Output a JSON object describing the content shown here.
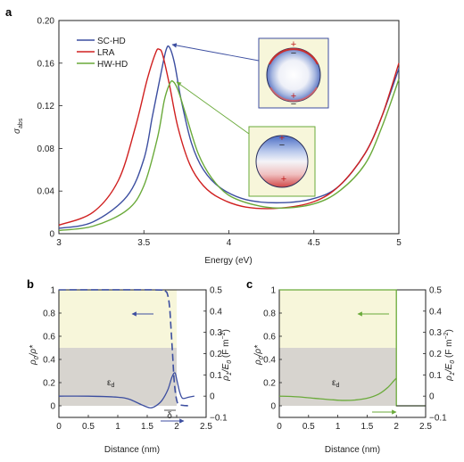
{
  "panel_labels": {
    "a": "a",
    "b": "b",
    "c": "c"
  },
  "colors": {
    "sc_hd": "#3c4ea0",
    "lra": "#d02020",
    "hw_hd": "#6aaa3a",
    "yellow_bg": "#f7f6da",
    "gray_bg": "#d7d4cf"
  },
  "chart_data": [
    {
      "type": "line",
      "panel": "a",
      "xlabel": "Energy (eV)",
      "ylabel": "σ_abs",
      "ylabel_main": "σ",
      "ylabel_sub": "abs",
      "xlim": [
        3,
        5
      ],
      "ylim": [
        0,
        0.2
      ],
      "x_ticks": [
        "3",
        "3.5",
        "4",
        "4.5",
        "5"
      ],
      "y_ticks": [
        "0",
        "0.04",
        "0.08",
        "0.12",
        "0.16",
        "0.20"
      ],
      "legend_position": "top-left",
      "series": [
        {
          "name": "SC-HD",
          "color": "#3c4ea0",
          "x": [
            3.0,
            3.2,
            3.4,
            3.5,
            3.55,
            3.6,
            3.63,
            3.65,
            3.68,
            3.72,
            3.78,
            3.85,
            3.95,
            4.1,
            4.3,
            4.5,
            4.65,
            4.8,
            4.9,
            5.0
          ],
          "y": [
            0.005,
            0.011,
            0.035,
            0.07,
            0.11,
            0.15,
            0.172,
            0.175,
            0.16,
            0.125,
            0.085,
            0.06,
            0.043,
            0.032,
            0.029,
            0.033,
            0.045,
            0.075,
            0.11,
            0.155
          ]
        },
        {
          "name": "LRA",
          "color": "#d02020",
          "x": [
            3.0,
            3.2,
            3.35,
            3.45,
            3.52,
            3.57,
            3.59,
            3.61,
            3.65,
            3.7,
            3.77,
            3.85,
            3.95,
            4.1,
            4.3,
            4.5,
            4.65,
            4.8,
            4.9,
            5.0
          ],
          "y": [
            0.008,
            0.02,
            0.05,
            0.1,
            0.145,
            0.17,
            0.173,
            0.168,
            0.14,
            0.1,
            0.065,
            0.045,
            0.033,
            0.025,
            0.024,
            0.03,
            0.045,
            0.075,
            0.11,
            0.16
          ]
        },
        {
          "name": "HW-HD",
          "color": "#6aaa3a",
          "x": [
            3.0,
            3.2,
            3.4,
            3.5,
            3.58,
            3.62,
            3.65,
            3.67,
            3.7,
            3.75,
            3.82,
            3.9,
            4.0,
            4.15,
            4.3,
            4.5,
            4.65,
            4.8,
            4.9,
            5.0
          ],
          "y": [
            0.003,
            0.007,
            0.022,
            0.045,
            0.09,
            0.125,
            0.14,
            0.143,
            0.135,
            0.11,
            0.075,
            0.052,
            0.036,
            0.027,
            0.024,
            0.028,
            0.04,
            0.065,
            0.1,
            0.145
          ]
        }
      ],
      "insets": [
        {
          "name": "inset-sc-hd",
          "plus_top": "+",
          "minus_top": "−",
          "plus_bottom": "+",
          "minus_bottom": "−"
        },
        {
          "name": "inset-hw-hd",
          "plus_top": "+",
          "minus_top": "−",
          "plus_bottom": "+"
        }
      ]
    },
    {
      "type": "line",
      "panel": "b",
      "xlabel": "Distance (nm)",
      "ylabel_left": "ρ0/ρ*",
      "ylabel_left_main": "ρ",
      "ylabel_left_sub": "0",
      "ylabel_left_tail": "/ρ*",
      "ylabel_right": "ρ1/E0 (F m⁻²)",
      "ylabel_right_main": "ρ",
      "ylabel_right_sub": "1",
      "ylabel_right_mid": "/E",
      "ylabel_right_sub2": "0",
      "ylabel_right_tail": " (F m",
      "ylabel_right_exp": "−2",
      "ylabel_right_close": ")",
      "xlim": [
        0,
        2.5
      ],
      "ylim_left": [
        -0.1,
        1.0
      ],
      "ylim_right": [
        -0.1,
        0.5
      ],
      "x_ticks": [
        "0",
        "0.5",
        "1",
        "1.5",
        "2",
        "2.5"
      ],
      "y_left_ticks": [
        "0",
        "0.2",
        "0.4",
        "0.6",
        "0.8",
        "1"
      ],
      "y_right_ticks": [
        "−0.1",
        "0",
        "0.1",
        "0.2",
        "0.3",
        "0.4",
        "0.5"
      ],
      "region_label": "ε_d",
      "region_label_main": "ε",
      "region_label_sub": "d",
      "delta_label": "δ",
      "series": [
        {
          "name": "ρ0 dashed",
          "axis": "left",
          "x": [
            0,
            1.6,
            1.8,
            1.85,
            1.88,
            1.9,
            1.93,
            1.96,
            2.0,
            2.05,
            2.2
          ],
          "y": [
            1,
            1,
            0.99,
            0.95,
            0.85,
            0.7,
            0.45,
            0.2,
            0.05,
            0.01,
            0
          ]
        },
        {
          "name": "ρ1 solid",
          "axis": "right",
          "x": [
            0,
            0.5,
            1.0,
            1.2,
            1.4,
            1.55,
            1.65,
            1.75,
            1.85,
            1.92,
            1.97,
            2.0,
            2.05,
            2.1,
            2.2,
            2.3
          ],
          "y": [
            0,
            0,
            -0.005,
            -0.015,
            -0.04,
            -0.055,
            -0.045,
            -0.02,
            0.03,
            0.09,
            0.11,
            0.08,
            0.02,
            -0.01,
            -0.005,
            0
          ]
        }
      ]
    },
    {
      "type": "line",
      "panel": "c",
      "xlabel": "Distance (nm)",
      "ylabel_left": "ρ0/ρ*",
      "ylabel_left_main": "ρ",
      "ylabel_left_sub": "0",
      "ylabel_left_tail": "/ρ*",
      "ylabel_right": "ρ1/E0 (F m⁻²)",
      "ylabel_right_main": "ρ",
      "ylabel_right_sub": "1",
      "ylabel_right_mid": "/E",
      "ylabel_right_sub2": "0",
      "ylabel_right_tail": " (F m",
      "ylabel_right_exp": "−2",
      "ylabel_right_close": ")",
      "xlim": [
        0,
        2.5
      ],
      "ylim_left": [
        -0.1,
        1.0
      ],
      "ylim_right": [
        -0.1,
        0.5
      ],
      "x_ticks": [
        "0",
        "0.5",
        "1",
        "1.5",
        "2",
        "2.5"
      ],
      "y_left_ticks": [
        "0",
        "0.2",
        "0.4",
        "0.6",
        "0.8",
        "1"
      ],
      "y_right_ticks": [
        "−0.1",
        "0",
        "0.1",
        "0.2",
        "0.3",
        "0.4",
        "0.5"
      ],
      "region_label": "ε_d",
      "region_label_main": "ε",
      "region_label_sub": "d",
      "series": [
        {
          "name": "ρ0",
          "axis": "left",
          "x": [
            0,
            2,
            2,
            2.5
          ],
          "y": [
            1,
            1,
            0,
            0
          ]
        },
        {
          "name": "ρ1",
          "axis": "right",
          "x": [
            0,
            0.3,
            0.6,
            0.9,
            1.1,
            1.3,
            1.5,
            1.7,
            1.85,
            1.95,
            2.0
          ],
          "y": [
            0,
            -0.003,
            -0.01,
            -0.017,
            -0.02,
            -0.018,
            -0.01,
            0.01,
            0.04,
            0.07,
            0.085
          ]
        }
      ]
    }
  ]
}
